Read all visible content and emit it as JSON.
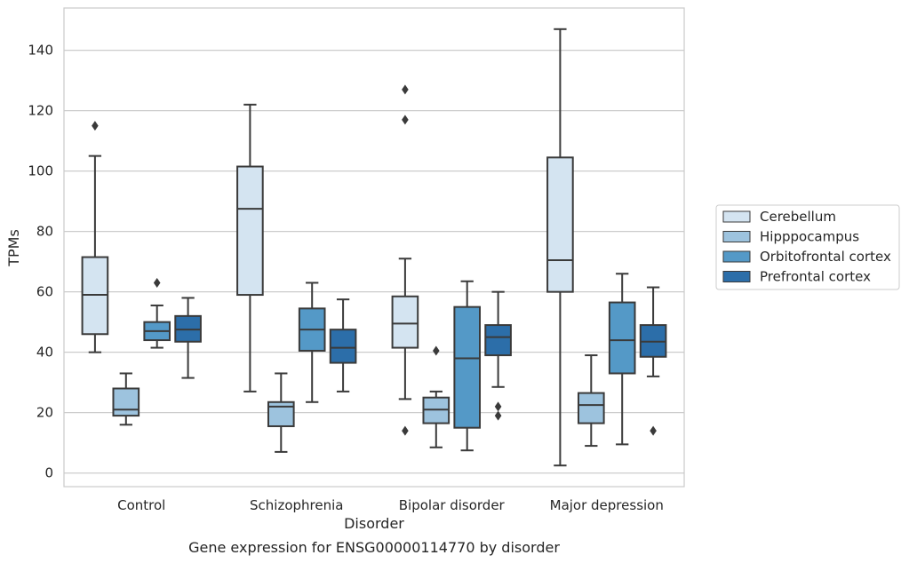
{
  "caption": "Gene expression for ENSG00000114770 by disorder",
  "chart_data": {
    "type": "box",
    "xlabel": "Disorder",
    "ylabel": "TPMs",
    "ylim": [
      -4.5,
      154
    ],
    "yticks": [
      0,
      20,
      40,
      60,
      80,
      100,
      120,
      140
    ],
    "grid": "horizontal",
    "legend_position": "right",
    "categories": [
      "Control",
      "Schizophrenia",
      "Bipolar disorder",
      "Major depression"
    ],
    "series": [
      {
        "name": "Cerebellum",
        "color": "#d4e4f1",
        "boxes": [
          {
            "whisker_low": 40,
            "q1": 46,
            "median": 59,
            "q3": 71.5,
            "whisker_high": 105,
            "outliers": [
              115
            ]
          },
          {
            "whisker_low": 27,
            "q1": 59,
            "median": 87.5,
            "q3": 101.5,
            "whisker_high": 122,
            "outliers": []
          },
          {
            "whisker_low": 24.5,
            "q1": 41.5,
            "median": 49.5,
            "q3": 58.5,
            "whisker_high": 71,
            "outliers": [
              127,
              117,
              14
            ]
          },
          {
            "whisker_low": 2.5,
            "q1": 60,
            "median": 70.5,
            "q3": 104.5,
            "whisker_high": 147,
            "outliers": []
          }
        ]
      },
      {
        "name": "Hipppocampus",
        "color": "#9dc3de",
        "boxes": [
          {
            "whisker_low": 16,
            "q1": 19,
            "median": 21,
            "q3": 28,
            "whisker_high": 33,
            "outliers": []
          },
          {
            "whisker_low": 7,
            "q1": 15.5,
            "median": 22,
            "q3": 23.5,
            "whisker_high": 33,
            "outliers": []
          },
          {
            "whisker_low": 8.5,
            "q1": 16.5,
            "median": 21,
            "q3": 25,
            "whisker_high": 27,
            "outliers": [
              40.5
            ]
          },
          {
            "whisker_low": 9,
            "q1": 16.5,
            "median": 22.5,
            "q3": 26.5,
            "whisker_high": 39,
            "outliers": []
          }
        ]
      },
      {
        "name": "Orbitofrontal cortex",
        "color": "#5499c7",
        "boxes": [
          {
            "whisker_low": 41.5,
            "q1": 44,
            "median": 47,
            "q3": 50,
            "whisker_high": 55.5,
            "outliers": [
              63
            ]
          },
          {
            "whisker_low": 23.5,
            "q1": 40.5,
            "median": 47.5,
            "q3": 54.5,
            "whisker_high": 63,
            "outliers": []
          },
          {
            "whisker_low": 7.5,
            "q1": 15,
            "median": 38,
            "q3": 55,
            "whisker_high": 63.5,
            "outliers": []
          },
          {
            "whisker_low": 9.5,
            "q1": 33,
            "median": 44,
            "q3": 56.5,
            "whisker_high": 66,
            "outliers": []
          }
        ]
      },
      {
        "name": "Prefrontal cortex",
        "color": "#2c6ea9",
        "boxes": [
          {
            "whisker_low": 31.5,
            "q1": 43.5,
            "median": 47.5,
            "q3": 52,
            "whisker_high": 58,
            "outliers": []
          },
          {
            "whisker_low": 27,
            "q1": 36.5,
            "median": 41.5,
            "q3": 47.5,
            "whisker_high": 57.5,
            "outliers": []
          },
          {
            "whisker_low": 28.5,
            "q1": 39,
            "median": 45,
            "q3": 49,
            "whisker_high": 60,
            "outliers": [
              22,
              19
            ]
          },
          {
            "whisker_low": 32,
            "q1": 38.5,
            "median": 43.5,
            "q3": 49,
            "whisker_high": 61.5,
            "outliers": [
              14
            ]
          }
        ]
      }
    ]
  }
}
